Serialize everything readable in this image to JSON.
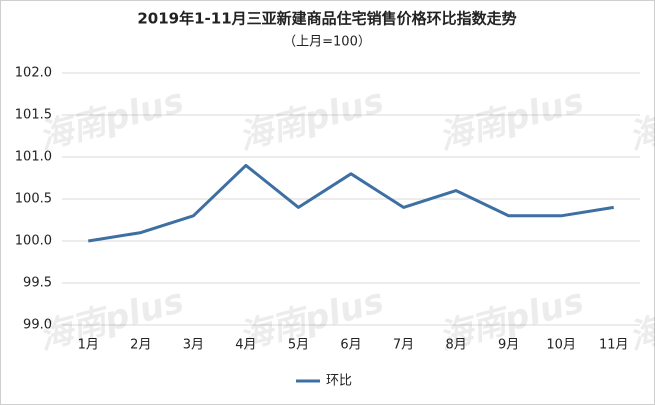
{
  "chart_data": {
    "type": "line",
    "title": "2019年1-11月三亚新建商品住宅销售价格环比指数走势",
    "subtitle": "（上月=100）",
    "watermark": "海南plus",
    "categories": [
      "1月",
      "2月",
      "3月",
      "4月",
      "5月",
      "6月",
      "7月",
      "8月",
      "9月",
      "10月",
      "11月"
    ],
    "series": [
      {
        "name": "环比",
        "color": "#3d6fa3",
        "values": [
          100.0,
          100.1,
          100.3,
          100.9,
          100.4,
          100.8,
          100.4,
          100.6,
          100.3,
          100.3,
          100.4
        ]
      }
    ],
    "ylim": [
      99,
      102
    ],
    "yticks": [
      {
        "value": 99,
        "label": "99.0"
      },
      {
        "value": 99.5,
        "label": "99.5"
      },
      {
        "value": 100,
        "label": "100.0"
      },
      {
        "value": 100.5,
        "label": "100.5"
      },
      {
        "value": 101,
        "label": "101.0"
      },
      {
        "value": 101.5,
        "label": "101.5"
      },
      {
        "value": 102,
        "label": "102.0"
      }
    ],
    "grid": true,
    "legend": "bottom"
  }
}
